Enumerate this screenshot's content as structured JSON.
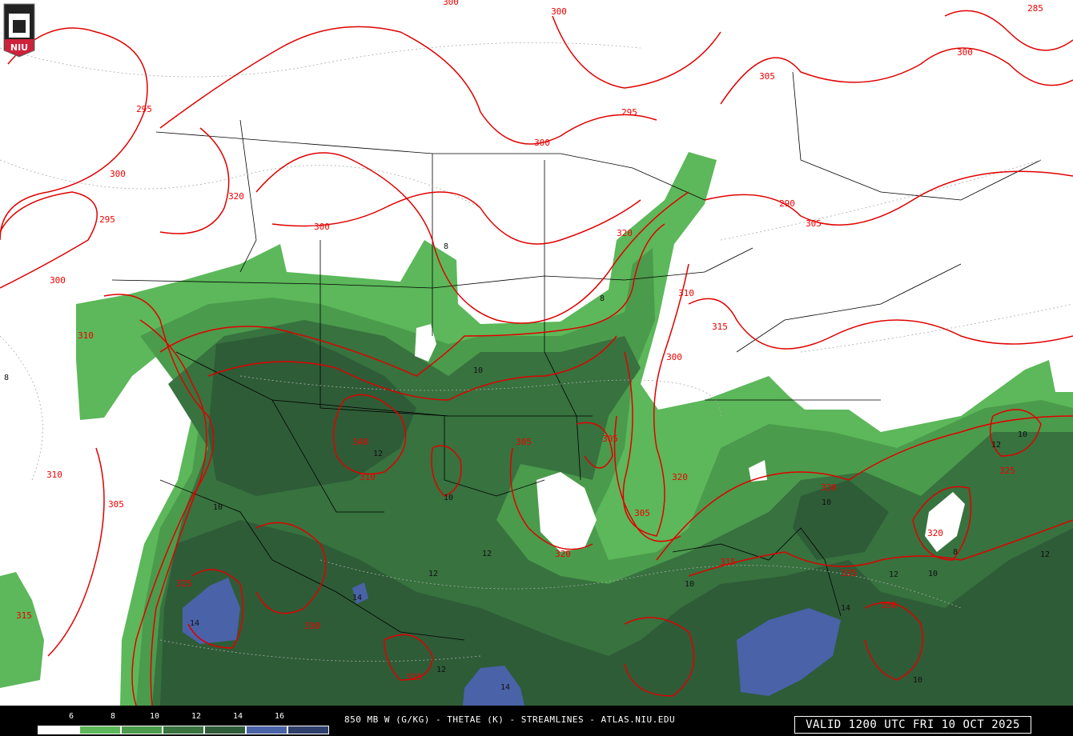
{
  "product": "850 MB W (G/KG) - THETAE (K) - STREAMLINES - ATLAS.NIU.EDU",
  "valid_time": "VALID 1200 UTC FRI 10 OCT 2025",
  "logo_text": "NIU",
  "legend": {
    "ticks": [
      "6",
      "8",
      "10",
      "12",
      "14",
      "16"
    ],
    "colors": [
      "#ffffff",
      "#5cb85a",
      "#4b9b4c",
      "#37723f",
      "#2e5c37",
      "#4a62a8",
      "#2f3f6c"
    ]
  },
  "colors": {
    "thetae_contour": "#e00000",
    "borders": "#000000",
    "streamlines": "#9a9a9a"
  },
  "thetae_labels": [
    "300",
    "300",
    "295",
    "300",
    "285",
    "300",
    "305",
    "295",
    "300",
    "295",
    "290",
    "305",
    "320",
    "300",
    "300",
    "315",
    "310",
    "320",
    "320",
    "305",
    "310",
    "300",
    "305",
    "310",
    "305",
    "320",
    "310",
    "305",
    "330",
    "325",
    "320",
    "340",
    "335",
    "330",
    "315",
    "315",
    "315",
    "325",
    "330"
  ],
  "mixing_ratio_labels": [
    "8",
    "8",
    "10",
    "12",
    "10",
    "8",
    "12",
    "10",
    "12",
    "10",
    "14",
    "14",
    "12",
    "14",
    "12",
    "10",
    "8",
    "12",
    "10",
    "12",
    "10",
    "14",
    "10"
  ]
}
